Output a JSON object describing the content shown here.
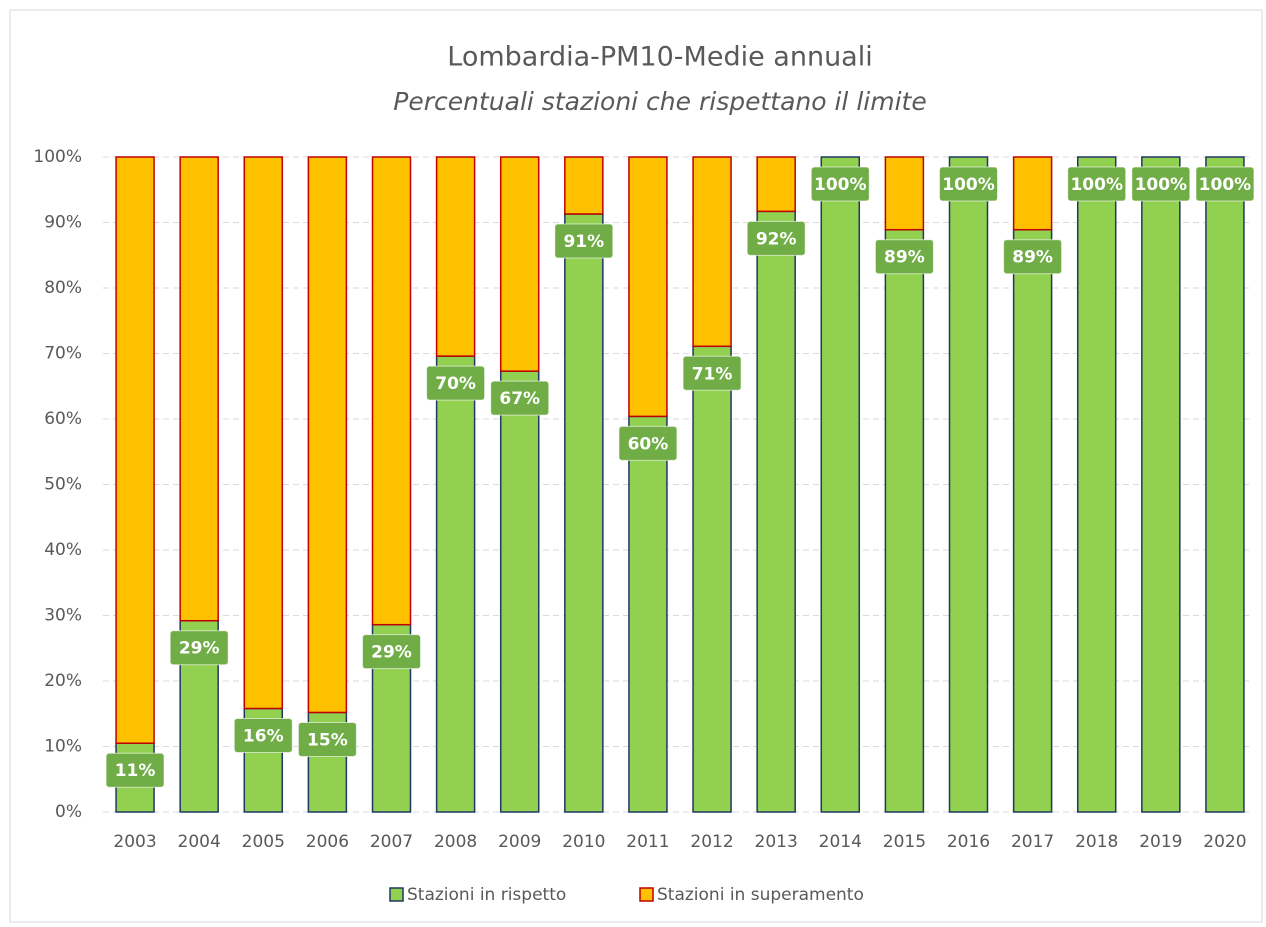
{
  "chart_data": {
    "type": "stacked_bar",
    "title": "Lombardia-PM10-Medie annuali",
    "subtitle": "Percentuali stazioni che rispettano il limite",
    "categories": [
      "2003",
      "2004",
      "2005",
      "2006",
      "2007",
      "2008",
      "2009",
      "2010",
      "2011",
      "2012",
      "2013",
      "2014",
      "2015",
      "2016",
      "2017",
      "2018",
      "2019",
      "2020"
    ],
    "series": [
      {
        "name": "Stazioni in rispetto",
        "color": "#92d050",
        "edgecolor": "#1f3864",
        "label_color": "#70ad47",
        "values": [
          10.5,
          29.2,
          15.8,
          15.2,
          28.6,
          69.6,
          67.3,
          91.3,
          60.4,
          71.1,
          91.7,
          100,
          88.9,
          100,
          88.9,
          100,
          100,
          100
        ],
        "value_labels": [
          "11%",
          "29%",
          "16%",
          "15%",
          "29%",
          "70%",
          "67%",
          "91%",
          "60%",
          "71%",
          "92%",
          "100%",
          "89%",
          "100%",
          "89%",
          "100%",
          "100%",
          "100%"
        ]
      },
      {
        "name": "Stazioni in superamento",
        "color": "#ffc000",
        "edgecolor": "#c00000",
        "values": [
          89.5,
          70.8,
          84.2,
          84.8,
          71.4,
          30.4,
          32.7,
          8.7,
          39.6,
          28.9,
          8.3,
          0,
          11.1,
          0,
          11.1,
          0,
          0,
          0
        ]
      }
    ],
    "ylim": [
      0,
      100
    ],
    "yticks": [
      {
        "value": 0,
        "label": "0%"
      },
      {
        "value": 10,
        "label": "10%"
      },
      {
        "value": 20,
        "label": "20%"
      },
      {
        "value": 30,
        "label": "30%"
      },
      {
        "value": 40,
        "label": "40%"
      },
      {
        "value": 50,
        "label": "50%"
      },
      {
        "value": 60,
        "label": "60%"
      },
      {
        "value": 70,
        "label": "70%"
      },
      {
        "value": 80,
        "label": "80%"
      },
      {
        "value": 90,
        "label": "90%"
      },
      {
        "value": 100,
        "label": "100%"
      }
    ],
    "grid": true,
    "legend": "bottom"
  }
}
